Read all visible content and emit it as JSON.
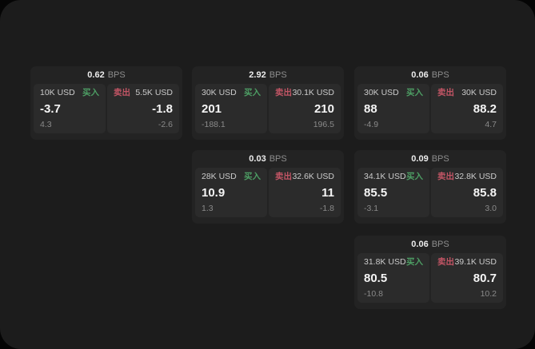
{
  "theme": {
    "outer_bg": "#050505",
    "surface_bg": "#1c1c1c",
    "card_bg": "#232323",
    "panel_bg": "#2b2b2b",
    "buy_color": "#4d9e64",
    "sell_color": "#c25565"
  },
  "labels": {
    "bps_unit": "BPS",
    "buy": "买入",
    "sell": "卖出"
  },
  "cards": [
    {
      "bps": "0.62",
      "buy": {
        "size": "10K USD",
        "value": "-3.7",
        "sub": "4.3"
      },
      "sell": {
        "size": "5.5K USD",
        "value": "-1.8",
        "sub": "-2.6"
      }
    },
    {
      "bps": "2.92",
      "buy": {
        "size": "30K USD",
        "value": "201",
        "sub": "-188.1"
      },
      "sell": {
        "size": "30.1K USD",
        "value": "210",
        "sub": "196.5"
      }
    },
    {
      "bps": "0.06",
      "buy": {
        "size": "30K USD",
        "value": "88",
        "sub": "-4.9"
      },
      "sell": {
        "size": "30K USD",
        "value": "88.2",
        "sub": "4.7"
      }
    },
    {
      "bps": "0.03",
      "buy": {
        "size": "28K USD",
        "value": "10.9",
        "sub": "1.3"
      },
      "sell": {
        "size": "32.6K USD",
        "value": "11",
        "sub": "-1.8"
      }
    },
    {
      "bps": "0.09",
      "buy": {
        "size": "34.1K USD",
        "value": "85.5",
        "sub": "-3.1"
      },
      "sell": {
        "size": "32.8K USD",
        "value": "85.8",
        "sub": "3.0"
      }
    },
    {
      "bps": "0.06",
      "buy": {
        "size": "31.8K USD",
        "value": "80.5",
        "sub": "-10.8"
      },
      "sell": {
        "size": "39.1K USD",
        "value": "80.7",
        "sub": "10.2"
      }
    }
  ]
}
